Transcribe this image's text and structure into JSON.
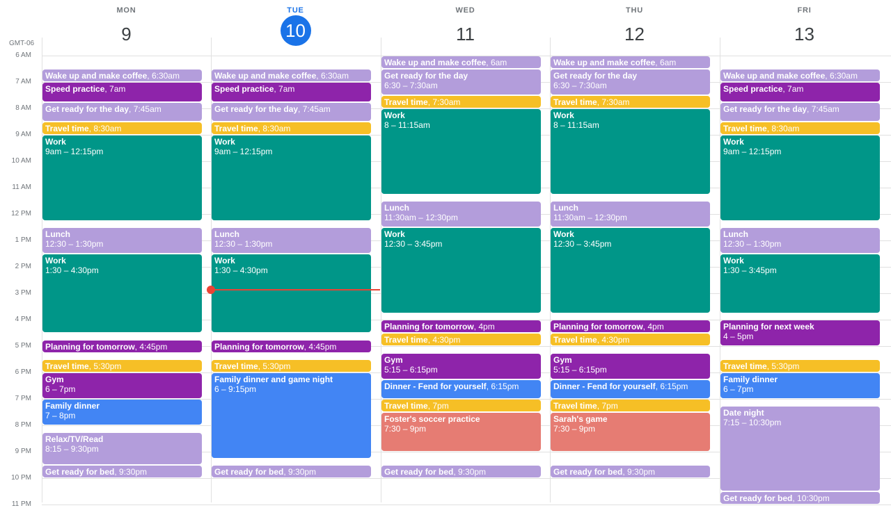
{
  "timezone": "GMT-06",
  "colors": {
    "lavender": "#b39ddb",
    "purple": "#8e24aa",
    "yellow": "#f6bf26",
    "teal": "#009688",
    "blue": "#4285f4",
    "salmon": "#e67c73",
    "today": "#1a73e8",
    "now": "#ea4335"
  },
  "hours": [
    "6 AM",
    "7 AM",
    "8 AM",
    "9 AM",
    "10 AM",
    "11 AM",
    "12 PM",
    "1 PM",
    "2 PM",
    "3 PM",
    "4 PM",
    "5 PM",
    "6 PM",
    "7 PM",
    "8 PM",
    "9 PM",
    "10 PM",
    "11 PM"
  ],
  "days": [
    {
      "dow": "MON",
      "num": "9",
      "today": false,
      "events": [
        {
          "title": "Wake up and make coffee",
          "time": ", 6:30am",
          "start": 6.5,
          "end": 7,
          "color": "lavender"
        },
        {
          "title": "Speed practice",
          "time": ", 7am",
          "start": 7,
          "end": 7.75,
          "color": "purple"
        },
        {
          "title": "Get ready for the day",
          "time": ", 7:45am",
          "start": 7.75,
          "end": 8.5,
          "color": "lavender"
        },
        {
          "title": "Travel time",
          "time": ", 8:30am",
          "start": 8.5,
          "end": 9,
          "color": "yellow"
        },
        {
          "title": "Work",
          "sub": "9am – 12:15pm",
          "start": 9,
          "end": 12.25,
          "color": "teal"
        },
        {
          "title": "Lunch",
          "sub": "12:30 – 1:30pm",
          "start": 12.5,
          "end": 13.5,
          "color": "lavender"
        },
        {
          "title": "Work",
          "sub": "1:30 – 4:30pm",
          "start": 13.5,
          "end": 16.5,
          "color": "teal"
        },
        {
          "title": "Planning for tomorrow",
          "time": ", 4:45pm",
          "start": 16.75,
          "end": 17.25,
          "color": "purple"
        },
        {
          "title": "Travel time",
          "time": ", 5:30pm",
          "start": 17.5,
          "end": 18,
          "color": "yellow"
        },
        {
          "title": "Gym",
          "sub": "6 – 7pm",
          "start": 18,
          "end": 19,
          "color": "purple"
        },
        {
          "title": "Family dinner",
          "sub": "7 – 8pm",
          "start": 19,
          "end": 20,
          "color": "blue"
        },
        {
          "title": "Relax/TV/Read",
          "sub": "8:15 – 9:30pm",
          "start": 20.25,
          "end": 21.5,
          "color": "lavender"
        },
        {
          "title": "Get ready for bed",
          "time": ", 9:30pm",
          "start": 21.5,
          "end": 22,
          "color": "lavender"
        }
      ]
    },
    {
      "dow": "TUE",
      "num": "10",
      "today": true,
      "events": [
        {
          "title": "Wake up and make coffee",
          "time": ", 6:30am",
          "start": 6.5,
          "end": 7,
          "color": "lavender"
        },
        {
          "title": "Speed practice",
          "time": ", 7am",
          "start": 7,
          "end": 7.75,
          "color": "purple"
        },
        {
          "title": "Get ready for the day",
          "time": ", 7:45am",
          "start": 7.75,
          "end": 8.5,
          "color": "lavender"
        },
        {
          "title": "Travel time",
          "time": ", 8:30am",
          "start": 8.5,
          "end": 9,
          "color": "yellow"
        },
        {
          "title": "Work",
          "sub": "9am – 12:15pm",
          "start": 9,
          "end": 12.25,
          "color": "teal"
        },
        {
          "title": "Lunch",
          "sub": "12:30 – 1:30pm",
          "start": 12.5,
          "end": 13.5,
          "color": "lavender"
        },
        {
          "title": "Work",
          "sub": "1:30 – 4:30pm",
          "start": 13.5,
          "end": 16.5,
          "color": "teal"
        },
        {
          "title": "Planning for tomorrow",
          "time": ", 4:45pm",
          "start": 16.75,
          "end": 17.25,
          "color": "purple"
        },
        {
          "title": "Travel time",
          "time": ", 5:30pm",
          "start": 17.5,
          "end": 18,
          "color": "yellow"
        },
        {
          "title": "Family dinner and game night",
          "sub": "6 – 9:15pm",
          "start": 18,
          "end": 21.25,
          "color": "blue"
        },
        {
          "title": "Get ready for bed",
          "time": ", 9:30pm",
          "start": 21.5,
          "end": 22,
          "color": "lavender"
        }
      ]
    },
    {
      "dow": "WED",
      "num": "11",
      "today": false,
      "events": [
        {
          "title": "Wake up and make coffee",
          "time": ", 6am",
          "start": 6,
          "end": 6.5,
          "color": "lavender"
        },
        {
          "title": "Get ready for the day",
          "sub": "6:30 – 7:30am",
          "start": 6.5,
          "end": 7.5,
          "color": "lavender"
        },
        {
          "title": "Travel time",
          "time": ", 7:30am",
          "start": 7.5,
          "end": 8,
          "color": "yellow"
        },
        {
          "title": "Work",
          "sub": "8 – 11:15am",
          "start": 8,
          "end": 11.25,
          "color": "teal"
        },
        {
          "title": "Lunch",
          "sub": "11:30am – 12:30pm",
          "start": 11.5,
          "end": 12.5,
          "color": "lavender"
        },
        {
          "title": "Work",
          "sub": "12:30 – 3:45pm",
          "start": 12.5,
          "end": 15.75,
          "color": "teal"
        },
        {
          "title": "Planning for tomorrow",
          "time": ", 4pm",
          "start": 16,
          "end": 16.5,
          "color": "purple"
        },
        {
          "title": "Travel time",
          "time": ", 4:30pm",
          "start": 16.5,
          "end": 17,
          "color": "yellow"
        },
        {
          "title": "Gym",
          "sub": "5:15 – 6:15pm",
          "start": 17.25,
          "end": 18.25,
          "color": "purple"
        },
        {
          "title": "Dinner - Fend for yourself",
          "time": ", 6:15pm",
          "start": 18.25,
          "end": 19,
          "color": "blue"
        },
        {
          "title": "Travel time",
          "time": ", 7pm",
          "start": 19,
          "end": 19.5,
          "color": "yellow"
        },
        {
          "title": "Foster's soccer practice",
          "sub": "7:30 – 9pm",
          "start": 19.5,
          "end": 21,
          "color": "salmon"
        },
        {
          "title": "Get ready for bed",
          "time": ", 9:30pm",
          "start": 21.5,
          "end": 22,
          "color": "lavender"
        }
      ]
    },
    {
      "dow": "THU",
      "num": "12",
      "today": false,
      "events": [
        {
          "title": "Wake up and make coffee",
          "time": ", 6am",
          "start": 6,
          "end": 6.5,
          "color": "lavender"
        },
        {
          "title": "Get ready for the day",
          "sub": "6:30 – 7:30am",
          "start": 6.5,
          "end": 7.5,
          "color": "lavender"
        },
        {
          "title": "Travel time",
          "time": ", 7:30am",
          "start": 7.5,
          "end": 8,
          "color": "yellow"
        },
        {
          "title": "Work",
          "sub": "8 – 11:15am",
          "start": 8,
          "end": 11.25,
          "color": "teal"
        },
        {
          "title": "Lunch",
          "sub": "11:30am – 12:30pm",
          "start": 11.5,
          "end": 12.5,
          "color": "lavender"
        },
        {
          "title": "Work",
          "sub": "12:30 – 3:45pm",
          "start": 12.5,
          "end": 15.75,
          "color": "teal"
        },
        {
          "title": "Planning for tomorrow",
          "time": ", 4pm",
          "start": 16,
          "end": 16.5,
          "color": "purple"
        },
        {
          "title": "Travel time",
          "time": ", 4:30pm",
          "start": 16.5,
          "end": 17,
          "color": "yellow"
        },
        {
          "title": "Gym",
          "sub": "5:15 – 6:15pm",
          "start": 17.25,
          "end": 18.25,
          "color": "purple"
        },
        {
          "title": "Dinner - Fend for yourself",
          "time": ", 6:15pm",
          "start": 18.25,
          "end": 19,
          "color": "blue"
        },
        {
          "title": "Travel time",
          "time": ", 7pm",
          "start": 19,
          "end": 19.5,
          "color": "yellow"
        },
        {
          "title": "Sarah's game",
          "sub": "7:30 – 9pm",
          "start": 19.5,
          "end": 21,
          "color": "salmon"
        },
        {
          "title": "Get ready for bed",
          "time": ", 9:30pm",
          "start": 21.5,
          "end": 22,
          "color": "lavender"
        }
      ]
    },
    {
      "dow": "FRI",
      "num": "13",
      "today": false,
      "events": [
        {
          "title": "Wake up and make coffee",
          "time": ", 6:30am",
          "start": 6.5,
          "end": 7,
          "color": "lavender"
        },
        {
          "title": "Speed practice",
          "time": ", 7am",
          "start": 7,
          "end": 7.75,
          "color": "purple"
        },
        {
          "title": "Get ready for the day",
          "time": ", 7:45am",
          "start": 7.75,
          "end": 8.5,
          "color": "lavender"
        },
        {
          "title": "Travel time",
          "time": ", 8:30am",
          "start": 8.5,
          "end": 9,
          "color": "yellow"
        },
        {
          "title": "Work",
          "sub": "9am – 12:15pm",
          "start": 9,
          "end": 12.25,
          "color": "teal"
        },
        {
          "title": "Lunch",
          "sub": "12:30 – 1:30pm",
          "start": 12.5,
          "end": 13.5,
          "color": "lavender"
        },
        {
          "title": "Work",
          "sub": "1:30 – 3:45pm",
          "start": 13.5,
          "end": 15.75,
          "color": "teal"
        },
        {
          "title": "Planning for next week",
          "sub": "4 – 5pm",
          "start": 16,
          "end": 17,
          "color": "purple"
        },
        {
          "title": "Travel time",
          "time": ", 5:30pm",
          "start": 17.5,
          "end": 18,
          "color": "yellow"
        },
        {
          "title": "Family dinner",
          "sub": "6 – 7pm",
          "start": 18,
          "end": 19,
          "color": "blue"
        },
        {
          "title": "Date night",
          "sub": "7:15 – 10:30pm",
          "start": 19.25,
          "end": 22.5,
          "color": "lavender"
        },
        {
          "title": "Get ready for bed",
          "time": ", 10:30pm",
          "start": 22.5,
          "end": 23,
          "color": "lavender"
        }
      ]
    }
  ],
  "now": {
    "day": 1,
    "hour": 14.87
  }
}
